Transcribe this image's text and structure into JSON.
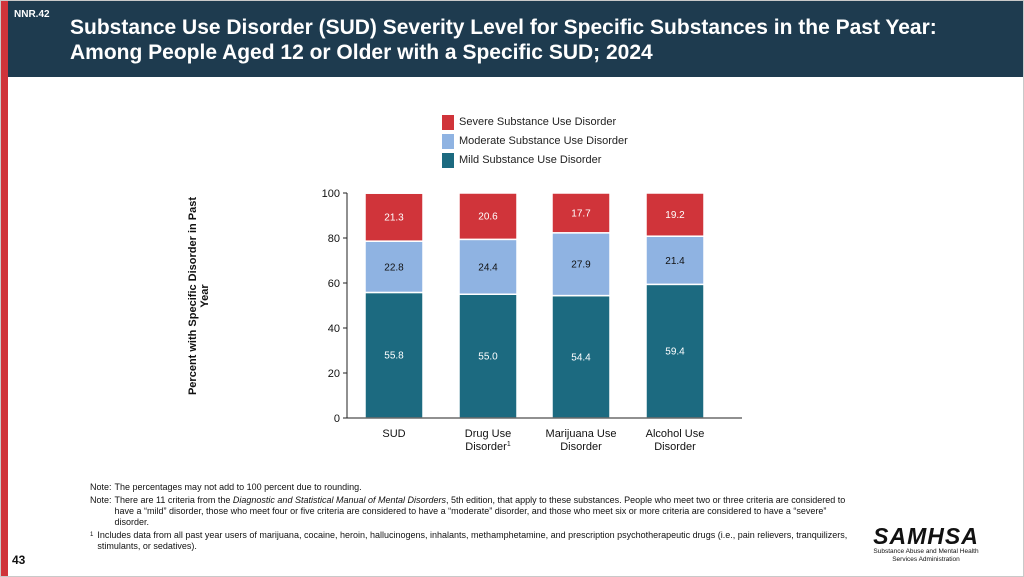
{
  "header": {
    "slide_id": "NNR.42",
    "title": "Substance Use Disorder (SUD) Severity Level for Specific Substances in the Past Year: Among People Aged 12 or Older with a Specific SUD; 2024"
  },
  "legend": {
    "items": [
      {
        "label": "Severe Substance Use Disorder",
        "color": "#d0343a"
      },
      {
        "label": "Moderate Substance Use Disorder",
        "color": "#8fb3e2"
      },
      {
        "label": "Mild Substance Use Disorder",
        "color": "#1c6a80"
      }
    ]
  },
  "chart_data": {
    "type": "bar",
    "stacked": true,
    "title": "Substance Use Disorder (SUD) Severity Level for Specific Substances in the Past Year: Among People Aged 12 or Older with a Specific SUD; 2024",
    "xlabel": "",
    "ylabel": "Percent with Specific Disorder in Past Year",
    "ylim": [
      0,
      100
    ],
    "yticks": [
      0,
      20,
      40,
      60,
      80,
      100
    ],
    "grid": false,
    "legend_position": "top",
    "categories": [
      {
        "lines": [
          "SUD"
        ],
        "superscript": ""
      },
      {
        "lines": [
          "Drug Use",
          "Disorder"
        ],
        "superscript": "1"
      },
      {
        "lines": [
          "Marijuana Use",
          "Disorder"
        ],
        "superscript": ""
      },
      {
        "lines": [
          "Alcohol Use",
          "Disorder"
        ],
        "superscript": ""
      }
    ],
    "series": [
      {
        "name": "Mild Substance Use Disorder",
        "color": "#1c6a80",
        "label_color": "#ffffff",
        "values": [
          55.8,
          55.0,
          54.4,
          59.4
        ]
      },
      {
        "name": "Moderate Substance Use Disorder",
        "color": "#8fb3e2",
        "label_color": "#111111",
        "values": [
          22.8,
          24.4,
          27.9,
          21.4
        ]
      },
      {
        "name": "Severe Substance Use Disorder",
        "color": "#d0343a",
        "label_color": "#ffffff",
        "values": [
          21.3,
          20.6,
          17.7,
          19.2
        ]
      }
    ]
  },
  "notes": {
    "note1_label": "Note:",
    "note1_text": "The percentages may not add to 100 percent due to rounding.",
    "note2_label": "Note:",
    "note2_before": "There are 11 criteria from the ",
    "note2_italic": "Diagnostic and Statistical Manual of Mental Disorders",
    "note2_after": ", 5th edition, that apply to these substances. People who meet two or three criteria are considered to have a “mild” disorder, those who meet four or five criteria are considered to have a “moderate” disorder, and those who meet six or more criteria are considered to have a “severe” disorder.",
    "footnote_mark": "1",
    "footnote_text": "Includes data from all past year users of marijuana, cocaine, heroin, hallucinogens, inhalants, methamphetamine, and prescription psychotherapeutic drugs (i.e., pain relievers, tranquilizers, stimulants, or sedatives)."
  },
  "footer": {
    "page_number": "43",
    "logo_name": "SAMHSA",
    "logo_sub_line1": "Substance Abuse and Mental Health",
    "logo_sub_line2": "Services Administration"
  }
}
